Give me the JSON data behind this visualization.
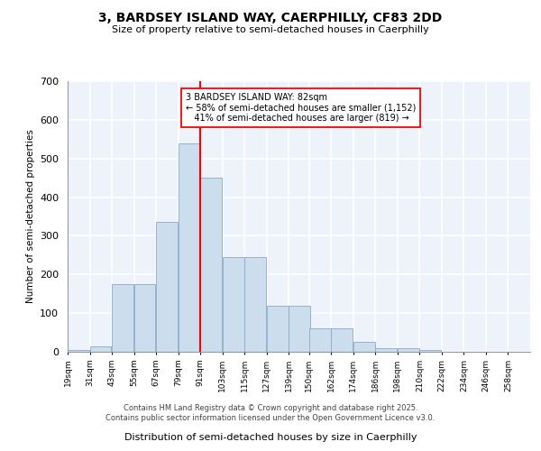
{
  "title_line1": "3, BARDSEY ISLAND WAY, CAERPHILLY, CF83 2DD",
  "title_line2": "Size of property relative to semi-detached houses in Caerphilly",
  "xlabel": "Distribution of semi-detached houses by size in Caerphilly",
  "ylabel": "Number of semi-detached properties",
  "bar_color": "#ccdded",
  "bar_edge_color": "#88aac8",
  "background_color": "#eef2fb",
  "grid_color": "#ffffff",
  "red_line_x": 91,
  "annotation_text": "3 BARDSEY ISLAND WAY: 82sqm\n← 58% of semi-detached houses are smaller (1,152)\n   41% of semi-detached houses are larger (819) →",
  "footer_line1": "Contains HM Land Registry data © Crown copyright and database right 2025.",
  "footer_line2": "Contains public sector information licensed under the Open Government Licence v3.0.",
  "bin_labels": [
    "19sqm",
    "31sqm",
    "43sqm",
    "55sqm",
    "67sqm",
    "79sqm",
    "91sqm",
    "103sqm",
    "115sqm",
    "127sqm",
    "139sqm",
    "150sqm",
    "162sqm",
    "174sqm",
    "186sqm",
    "198sqm",
    "210sqm",
    "222sqm",
    "234sqm",
    "246sqm",
    "258sqm"
  ],
  "bin_starts": [
    19,
    31,
    43,
    55,
    67,
    79,
    91,
    103,
    115,
    127,
    139,
    150,
    162,
    174,
    186,
    198,
    210,
    222,
    234,
    246,
    258
  ],
  "bar_heights": [
    5,
    15,
    175,
    175,
    335,
    540,
    450,
    245,
    245,
    120,
    120,
    60,
    60,
    25,
    10,
    10,
    5,
    0,
    0,
    0,
    0
  ],
  "ylim": [
    0,
    700
  ],
  "yticks": [
    0,
    100,
    200,
    300,
    400,
    500,
    600,
    700
  ]
}
